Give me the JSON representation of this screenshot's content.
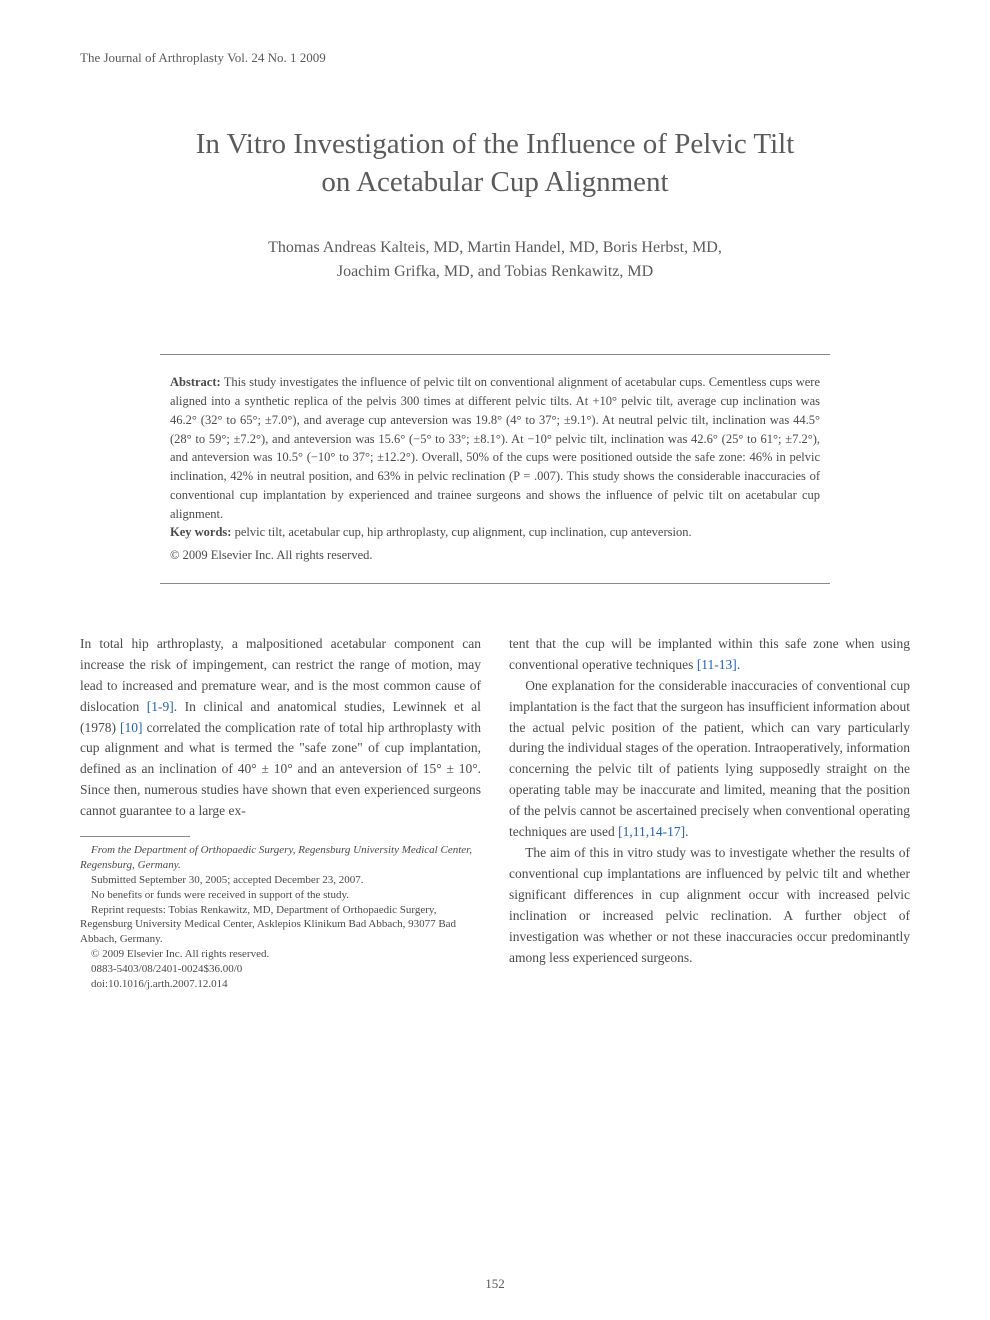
{
  "journal_header": "The Journal of Arthroplasty Vol. 24 No. 1 2009",
  "title_line1": "In Vitro Investigation of the Influence of Pelvic Tilt",
  "title_line2": "on Acetabular Cup Alignment",
  "authors_line1": "Thomas Andreas Kalteis, MD, Martin Handel, MD, Boris Herbst, MD,",
  "authors_line2": "Joachim Grifka, MD, and Tobias Renkawitz, MD",
  "abstract": {
    "label": "Abstract:",
    "text": " This study investigates the influence of pelvic tilt on conventional alignment of acetabular cups. Cementless cups were aligned into a synthetic replica of the pelvis 300 times at different pelvic tilts. At +10° pelvic tilt, average cup inclination was 46.2° (32° to 65°; ±7.0°), and average cup anteversion was 19.8° (4° to 37°; ±9.1°). At neutral pelvic tilt, inclination was 44.5° (28° to 59°; ±7.2°), and anteversion was 15.6° (−5° to 33°; ±8.1°). At −10° pelvic tilt, inclination was 42.6° (25° to 61°; ±7.2°), and anteversion was 10.5° (−10° to 37°; ±12.2°). Overall, 50% of the cups were positioned outside the safe zone: 46% in pelvic inclination, 42% in neutral position, and 63% in pelvic reclination (P = .007). This study shows the considerable inaccuracies of conventional cup implantation by experienced and trainee surgeons and shows the influence of pelvic tilt on acetabular cup alignment.",
    "keywords_label": "Key words:",
    "keywords_text": " pelvic tilt, acetabular cup, hip arthroplasty, cup alignment, cup inclination, cup anteversion.",
    "copyright": "© 2009 Elsevier Inc. All rights reserved."
  },
  "body": {
    "col1": {
      "p1_a": "In total hip arthroplasty, a malpositioned acetabular component can increase the risk of impingement, can restrict the range of motion, may lead to increased and premature wear, and is the most common cause of dislocation ",
      "p1_ref1": "[1-9]",
      "p1_b": ". In clinical and anatomical studies, Lewinnek et al (1978) ",
      "p1_ref2": "[10]",
      "p1_c": " correlated the complication rate of total hip arthroplasty with cup alignment and what is termed the \"safe zone\" of cup implantation, defined as an inclination of 40° ± 10° and an anteversion of 15° ± 10°. Since then, numerous studies have shown that even experienced surgeons cannot guarantee to a large ex-"
    },
    "col2": {
      "p1_a": "tent that the cup will be implanted within this safe zone when using conventional operative techniques ",
      "p1_ref1": "[11-13]",
      "p1_b": ".",
      "p2_a": "One explanation for the considerable inaccuracies of conventional cup implantation is the fact that the surgeon has insufficient information about the actual pelvic position of the patient, which can vary particularly during the individual stages of the operation. Intraoperatively, information concerning the pelvic tilt of patients lying supposedly straight on the operating table may be inaccurate and limited, meaning that the position of the pelvis cannot be ascertained precisely when conventional operating techniques are used ",
      "p2_ref1": "[1,11,14-17]",
      "p2_b": ".",
      "p3": "The aim of this in vitro study was to investigate whether the results of conventional cup implantations are influenced by pelvic tilt and whether significant differences in cup alignment occur with increased pelvic inclination or increased pelvic reclination. A further object of investigation was whether or not these inaccuracies occur predominantly among less experienced surgeons."
    }
  },
  "footnotes": {
    "affil": "From the Department of Orthopaedic Surgery, Regensburg University Medical Center, Regensburg, Germany.",
    "submitted": "Submitted September 30, 2005; accepted December 23, 2007.",
    "benefits": "No benefits or funds were received in support of the study.",
    "reprint": "Reprint requests: Tobias Renkawitz, MD, Department of Orthopaedic Surgery, Regensburg University Medical Center, Asklepios Klinikum Bad Abbach, 93077 Bad Abbach, Germany.",
    "copyright": "© 2009 Elsevier Inc. All rights reserved.",
    "issn": "0883-5403/08/2401-0024$36.00/0",
    "doi": "doi:10.1016/j.arth.2007.12.014"
  },
  "page_number": "152",
  "colors": {
    "text": "#4a4a4a",
    "heading": "#5a5a5a",
    "link": "#2060c0",
    "rule": "#888888",
    "background": "#ffffff"
  },
  "typography": {
    "body_fontsize_pt": 10,
    "title_fontsize_pt": 22,
    "authors_fontsize_pt": 12,
    "abstract_fontsize_pt": 9.5,
    "footnote_fontsize_pt": 8,
    "font_family": "serif"
  }
}
